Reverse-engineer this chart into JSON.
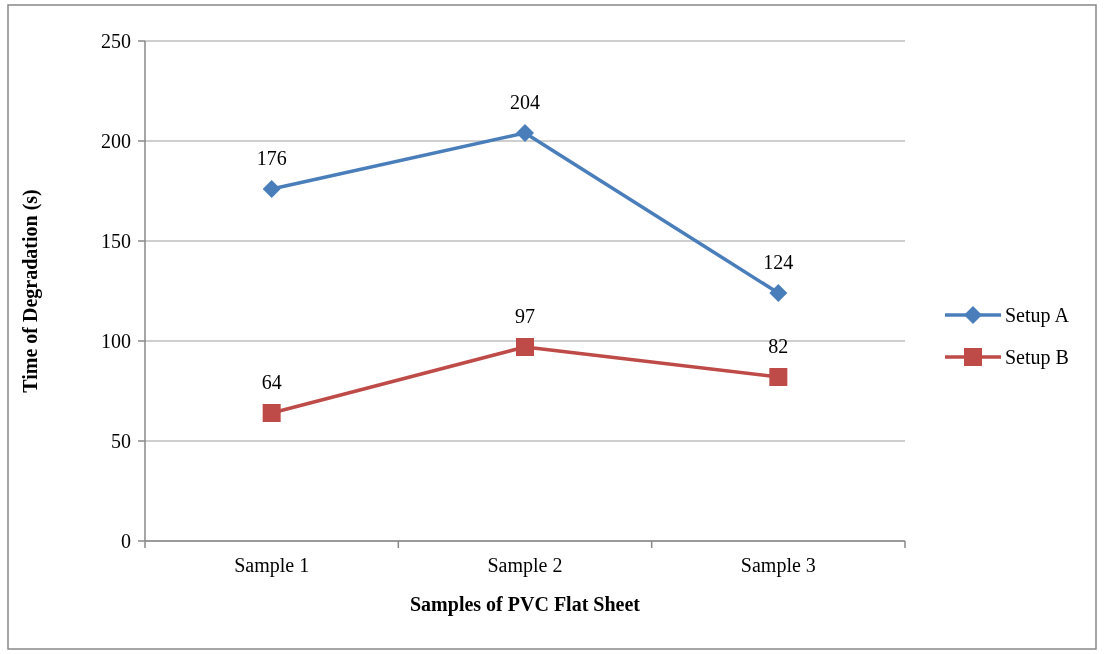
{
  "chart_data": {
    "type": "line",
    "categories": [
      "Sample 1",
      "Sample 2",
      "Sample 3"
    ],
    "series": [
      {
        "name": "Setup A",
        "color": "#4a7ebb",
        "values": [
          176,
          204,
          124
        ],
        "marker": "diamond"
      },
      {
        "name": "Setup B",
        "color": "#be4b48",
        "values": [
          64,
          97,
          82
        ],
        "marker": "square"
      }
    ],
    "xlabel": "Samples of PVC Flat Sheet",
    "ylabel": "Time of Degradation (s)",
    "ylim": [
      0,
      250
    ],
    "yticks": [
      0,
      50,
      100,
      150,
      200,
      250
    ],
    "grid": "y",
    "legend": "right",
    "data_labels": true,
    "line_style": "solid"
  }
}
